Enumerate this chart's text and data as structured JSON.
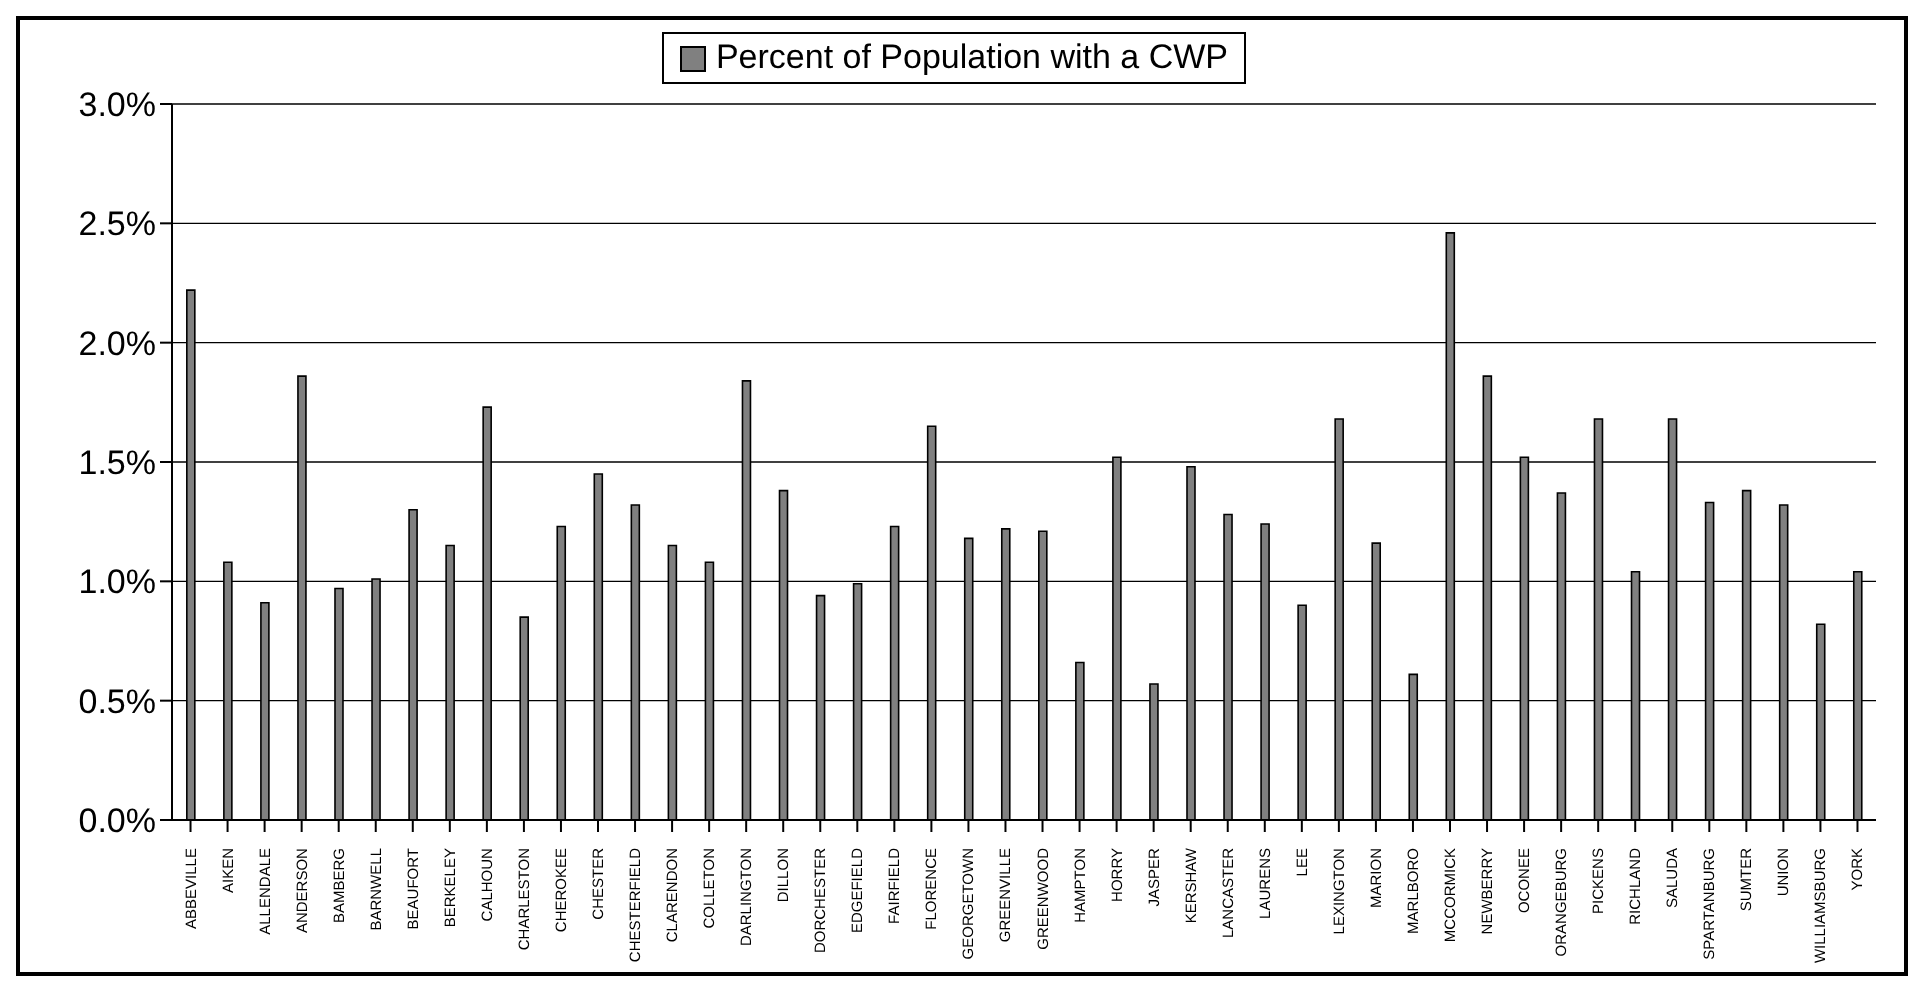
{
  "chart_data": {
    "type": "bar",
    "categories": [
      "ABBEVILLE",
      "AIKEN",
      "ALLENDALE",
      "ANDERSON",
      "BAMBERG",
      "BARNWELL",
      "BEAUFORT",
      "BERKELEY",
      "CALHOUN",
      "CHARLESTON",
      "CHEROKEE",
      "CHESTER",
      "CHESTERFIELD",
      "CLARENDON",
      "COLLETON",
      "DARLINGTON",
      "DILLON",
      "DORCHESTER",
      "EDGEFIELD",
      "FAIRFIELD",
      "FLORENCE",
      "GEORGETOWN",
      "GREENVILLE",
      "GREENWOOD",
      "HAMPTON",
      "HORRY",
      "JASPER",
      "KERSHAW",
      "LANCASTER",
      "LAURENS",
      "LEE",
      "LEXINGTON",
      "MARION",
      "MARLBORO",
      "MCCORMICK",
      "NEWBERRY",
      "OCONEE",
      "ORANGEBURG",
      "PICKENS",
      "RICHLAND",
      "SALUDA",
      "SPARTANBURG",
      "SUMTER",
      "UNION",
      "WILLIAMSBURG",
      "YORK"
    ],
    "series": [
      {
        "name": "Percent of Population with a CWP",
        "color": "#808080",
        "values": [
          2.22,
          1.08,
          0.91,
          1.86,
          0.97,
          1.01,
          1.3,
          1.15,
          1.73,
          0.85,
          1.23,
          1.45,
          1.32,
          1.15,
          1.08,
          1.84,
          1.38,
          0.94,
          0.99,
          1.23,
          1.65,
          1.18,
          1.22,
          1.21,
          0.66,
          1.52,
          0.57,
          1.48,
          1.28,
          1.24,
          0.9,
          1.68,
          1.16,
          0.61,
          2.46,
          1.86,
          1.52,
          1.37,
          1.68,
          1.04,
          1.68,
          1.33,
          1.38,
          1.32,
          0.82,
          1.04
        ]
      }
    ],
    "ylim": [
      0,
      3
    ],
    "yticks": [
      {
        "value": 0,
        "label": "0.0%"
      },
      {
        "value": 0.5,
        "label": "0.5%"
      },
      {
        "value": 1,
        "label": "1.0%"
      },
      {
        "value": 1.5,
        "label": "1.5%"
      },
      {
        "value": 2,
        "label": "2.0%"
      },
      {
        "value": 2.5,
        "label": "2.5%"
      },
      {
        "value": 3,
        "label": "3.0%"
      }
    ],
    "grid": "y",
    "legend": "top"
  }
}
